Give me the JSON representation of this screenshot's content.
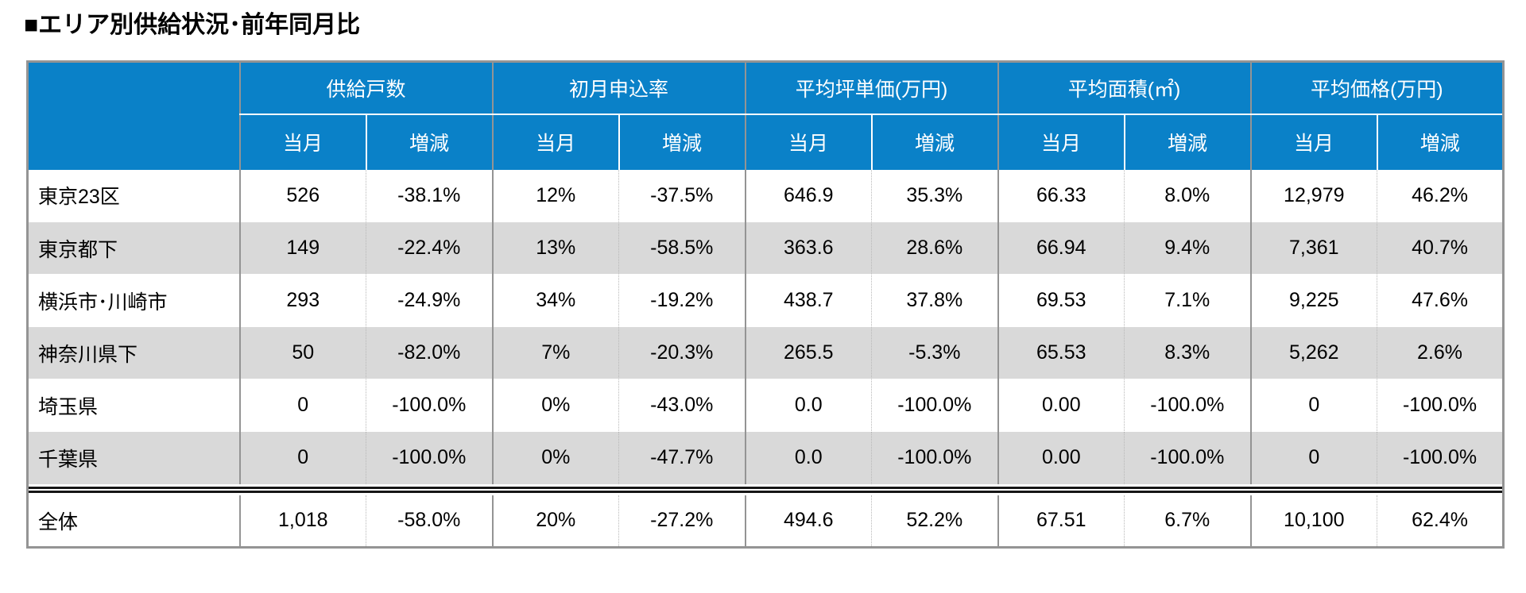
{
  "page_title": "■エリア別供給状況･前年同月比",
  "colors": {
    "header_bg": "#0a81c8",
    "header_text": "#ffffff",
    "alt_row_bg": "#d9d9d9",
    "grid_border": "#949494",
    "text": "#000000"
  },
  "table": {
    "corner_label": "",
    "column_groups": [
      {
        "label": "供給戸数"
      },
      {
        "label": "初月申込率"
      },
      {
        "label": "平均坪単価(万円)"
      },
      {
        "label": "平均面積(㎡)"
      },
      {
        "label": "平均価格(万円)"
      }
    ],
    "sub_headers": {
      "current": "当月",
      "change": "増減"
    },
    "rows": [
      {
        "label": "東京23区",
        "values": [
          "526",
          "-38.1%",
          "12%",
          "-37.5%",
          "646.9",
          "35.3%",
          "66.33",
          "8.0%",
          "12,979",
          "46.2%"
        ]
      },
      {
        "label": "東京都下",
        "values": [
          "149",
          "-22.4%",
          "13%",
          "-58.5%",
          "363.6",
          "28.6%",
          "66.94",
          "9.4%",
          "7,361",
          "40.7%"
        ]
      },
      {
        "label": "横浜市･川崎市",
        "values": [
          "293",
          "-24.9%",
          "34%",
          "-19.2%",
          "438.7",
          "37.8%",
          "69.53",
          "7.1%",
          "9,225",
          "47.6%"
        ]
      },
      {
        "label": "神奈川県下",
        "values": [
          "50",
          "-82.0%",
          "7%",
          "-20.3%",
          "265.5",
          "-5.3%",
          "65.53",
          "8.3%",
          "5,262",
          "2.6%"
        ]
      },
      {
        "label": "埼玉県",
        "values": [
          "0",
          "-100.0%",
          "0%",
          "-43.0%",
          "0.0",
          "-100.0%",
          "0.00",
          "-100.0%",
          "0",
          "-100.0%"
        ]
      },
      {
        "label": "千葉県",
        "values": [
          "0",
          "-100.0%",
          "0%",
          "-47.7%",
          "0.0",
          "-100.0%",
          "0.00",
          "-100.0%",
          "0",
          "-100.0%"
        ]
      }
    ],
    "total_row": {
      "label": "全体",
      "values": [
        "1,018",
        "-58.0%",
        "20%",
        "-27.2%",
        "494.6",
        "52.2%",
        "67.51",
        "6.7%",
        "10,100",
        "62.4%"
      ]
    }
  },
  "chart_data": {
    "type": "table",
    "title": "■エリア別供給状況･前年同月比",
    "column_groups": [
      "供給戸数",
      "初月申込率",
      "平均坪単価(万円)",
      "平均面積(㎡)",
      "平均価格(万円)"
    ],
    "sub_columns": [
      "当月",
      "増減"
    ],
    "columns": [
      "",
      "供給戸数 当月",
      "供給戸数 増減",
      "初月申込率 当月",
      "初月申込率 増減",
      "平均坪単価(万円) 当月",
      "平均坪単価(万円) 増減",
      "平均面積(㎡) 当月",
      "平均面積(㎡) 増減",
      "平均価格(万円) 当月",
      "平均価格(万円) 増減"
    ],
    "rows": [
      [
        "東京23区",
        "526",
        "-38.1%",
        "12%",
        "-37.5%",
        "646.9",
        "35.3%",
        "66.33",
        "8.0%",
        "12,979",
        "46.2%"
      ],
      [
        "東京都下",
        "149",
        "-22.4%",
        "13%",
        "-58.5%",
        "363.6",
        "28.6%",
        "66.94",
        "9.4%",
        "7,361",
        "40.7%"
      ],
      [
        "横浜市･川崎市",
        "293",
        "-24.9%",
        "34%",
        "-19.2%",
        "438.7",
        "37.8%",
        "69.53",
        "7.1%",
        "9,225",
        "47.6%"
      ],
      [
        "神奈川県下",
        "50",
        "-82.0%",
        "7%",
        "-20.3%",
        "265.5",
        "-5.3%",
        "65.53",
        "8.3%",
        "5,262",
        "2.6%"
      ],
      [
        "埼玉県",
        "0",
        "-100.0%",
        "0%",
        "-43.0%",
        "0.0",
        "-100.0%",
        "0.00",
        "-100.0%",
        "0",
        "-100.0%"
      ],
      [
        "千葉県",
        "0",
        "-100.0%",
        "0%",
        "-47.7%",
        "0.0",
        "-100.0%",
        "0.00",
        "-100.0%",
        "0",
        "-100.0%"
      ],
      [
        "全体",
        "1,018",
        "-58.0%",
        "20%",
        "-27.2%",
        "494.6",
        "52.2%",
        "67.51",
        "6.7%",
        "10,100",
        "62.4%"
      ]
    ]
  }
}
